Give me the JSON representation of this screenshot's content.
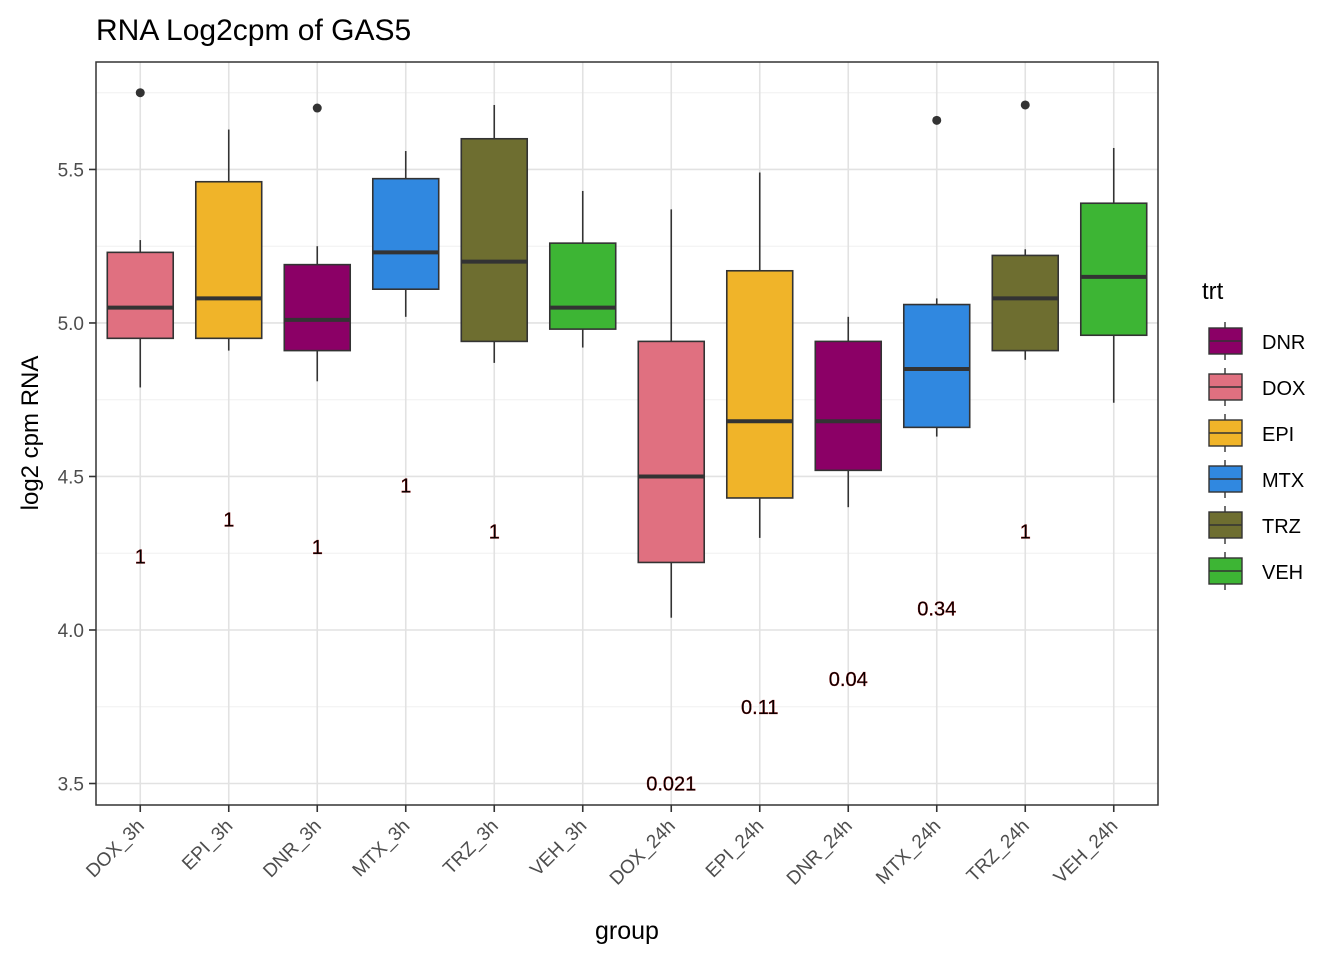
{
  "chart_data": {
    "type": "boxplot",
    "title": "RNA Log2cpm of GAS5",
    "xlabel": "group",
    "ylabel": "log2 cpm RNA",
    "ylim": [
      3.43,
      5.85
    ],
    "y_ticks": [
      3.5,
      4.0,
      4.5,
      5.0,
      5.5
    ],
    "y_tick_labels": [
      "3.5",
      "4.0",
      "4.5",
      "5.0",
      "5.5"
    ],
    "grid": true,
    "legend": {
      "title": "trt",
      "position": "right",
      "entries": [
        {
          "label": "DNR",
          "color": "#8B0066"
        },
        {
          "label": "DOX",
          "color": "#E07080"
        },
        {
          "label": "EPI",
          "color": "#F0B429"
        },
        {
          "label": "MTX",
          "color": "#3088E0"
        },
        {
          "label": "TRZ",
          "color": "#6E6E30"
        },
        {
          "label": "VEH",
          "color": "#3DB534"
        }
      ]
    },
    "groups": [
      {
        "label": "DOX_3h",
        "trt": "DOX",
        "min": 4.79,
        "q1": 4.95,
        "median": 5.05,
        "q3": 5.23,
        "max": 5.27,
        "outliers": [
          5.75
        ],
        "pvalue": "1",
        "pvalue_y": 4.24
      },
      {
        "label": "EPI_3h",
        "trt": "EPI",
        "min": 4.91,
        "q1": 4.95,
        "median": 5.08,
        "q3": 5.46,
        "max": 5.63,
        "outliers": [],
        "pvalue": "1",
        "pvalue_y": 4.36
      },
      {
        "label": "DNR_3h",
        "trt": "DNR",
        "min": 4.81,
        "q1": 4.91,
        "median": 5.01,
        "q3": 5.19,
        "max": 5.25,
        "outliers": [
          5.7
        ],
        "pvalue": "1",
        "pvalue_y": 4.27
      },
      {
        "label": "MTX_3h",
        "trt": "MTX",
        "min": 5.02,
        "q1": 5.11,
        "median": 5.23,
        "q3": 5.47,
        "max": 5.56,
        "outliers": [],
        "pvalue": "1",
        "pvalue_y": 4.47
      },
      {
        "label": "TRZ_3h",
        "trt": "TRZ",
        "min": 4.87,
        "q1": 4.94,
        "median": 5.2,
        "q3": 5.6,
        "max": 5.71,
        "outliers": [],
        "pvalue": "1",
        "pvalue_y": 4.32
      },
      {
        "label": "VEH_3h",
        "trt": "VEH",
        "min": 4.92,
        "q1": 4.98,
        "median": 5.05,
        "q3": 5.26,
        "max": 5.43,
        "outliers": [],
        "pvalue": "",
        "pvalue_y": null
      },
      {
        "label": "DOX_24h",
        "trt": "DOX",
        "min": 4.04,
        "q1": 4.22,
        "median": 4.5,
        "q3": 4.94,
        "max": 5.37,
        "outliers": [],
        "pvalue": "0.021",
        "pvalue_y": 3.5
      },
      {
        "label": "EPI_24h",
        "trt": "EPI",
        "min": 4.3,
        "q1": 4.43,
        "median": 4.68,
        "q3": 5.17,
        "max": 5.49,
        "outliers": [],
        "pvalue": "0.11",
        "pvalue_y": 3.75
      },
      {
        "label": "DNR_24h",
        "trt": "DNR",
        "min": 4.4,
        "q1": 4.52,
        "median": 4.68,
        "q3": 4.94,
        "max": 5.02,
        "outliers": [],
        "pvalue": "0.04",
        "pvalue_y": 3.84
      },
      {
        "label": "MTX_24h",
        "trt": "MTX",
        "min": 4.63,
        "q1": 4.66,
        "median": 4.85,
        "q3": 5.06,
        "max": 5.08,
        "outliers": [
          5.66
        ],
        "pvalue": "0.34",
        "pvalue_y": 4.07
      },
      {
        "label": "TRZ_24h",
        "trt": "TRZ",
        "min": 4.88,
        "q1": 4.91,
        "median": 5.08,
        "q3": 5.22,
        "max": 5.24,
        "outliers": [
          5.71
        ],
        "pvalue": "1",
        "pvalue_y": 4.32
      },
      {
        "label": "VEH_24h",
        "trt": "VEH",
        "min": 4.74,
        "q1": 4.96,
        "median": 5.15,
        "q3": 5.39,
        "max": 5.57,
        "outliers": [],
        "pvalue": "",
        "pvalue_y": null
      }
    ]
  }
}
